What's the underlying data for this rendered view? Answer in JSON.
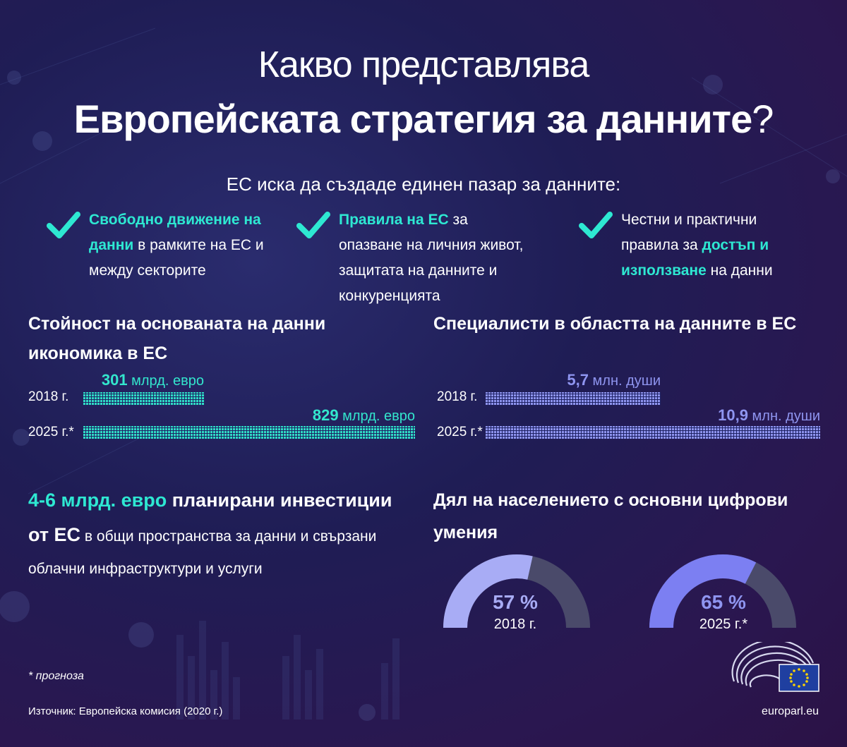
{
  "title": {
    "line1": "Какво представлява",
    "line2_main": "Европейската стратегия за данните",
    "line2_q": "?"
  },
  "intro": "ЕС иска да създаде единен пазар за данните:",
  "goals": [
    {
      "hl": "Свободно движение на данни",
      "rest": " в рамките на ЕС и между секторите"
    },
    {
      "hl": "Правила на ЕС",
      "rest": " за опазване на личния живот, защитата на данните и конкуренцията"
    },
    {
      "pre": "Честни и практични правила за ",
      "hl": "достъп и използване",
      "rest": " на данни"
    }
  ],
  "economy": {
    "title": "Стойност на основаната на данни икономика в ЕС",
    "rows": [
      {
        "year": "2018 г.",
        "num": "301",
        "unit": " млрд. евро",
        "value": 301
      },
      {
        "year": "2025 г.*",
        "num": "829",
        "unit": " млрд. евро",
        "value": 829
      }
    ],
    "max": 829,
    "color": "#33e6cd"
  },
  "specialists": {
    "title": "Специалисти в областта на данните в ЕС",
    "rows": [
      {
        "year": "2018 г.",
        "num": "5,7",
        "unit": " млн. души",
        "value": 5.7
      },
      {
        "year": "2025 г.*",
        "num": "10,9",
        "unit": " млн. души",
        "value": 10.9
      }
    ],
    "max": 10.9,
    "color": "#8f95f0"
  },
  "investment": {
    "amount": "4-6 млрд. евро",
    "bold1": " планирани инвестиции от ЕС",
    "rest": " в общи пространства за данни и свързани облачни инфраструктури и услуги"
  },
  "skills": {
    "title": "Дял на населението с основни цифрови умения",
    "gauges": [
      {
        "pct": "57 %",
        "year": "2018 г.",
        "value": 57,
        "color": "#a8acf5"
      },
      {
        "pct": "65 %",
        "year": "2025 г.*",
        "value": 65,
        "color": "#7c7ff2"
      }
    ]
  },
  "footnote": "* прогноза",
  "source": "Източник: Европейска комисия (2020 г.)",
  "site": "europarl.eu",
  "colors": {
    "teal": "#2ee8d2",
    "violet": "#8f95f0",
    "track": "#4a4a6a"
  },
  "icons": {
    "check": "check-icon",
    "logo": "european-parliament-logo",
    "flag": "eu-flag-icon"
  }
}
